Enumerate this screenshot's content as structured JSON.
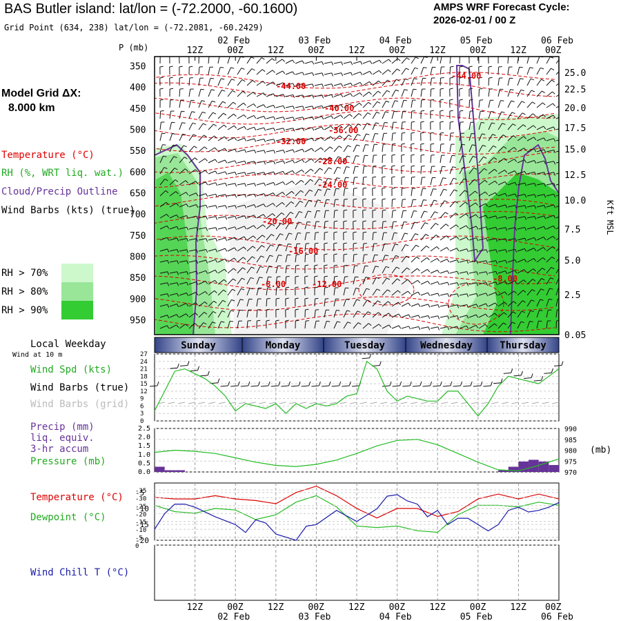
{
  "header": {
    "title": "BAS Butler island:  lat/lon = (-72.2000, -60.1600)",
    "grid_point": "Grid Point (634, 238) lat/lon = (-72.2081, -60.2429)",
    "cycle_label": "AMPS WRF Forecast Cycle:",
    "cycle_value": "2026-02-01 / 00  Z"
  },
  "side_labels": {
    "model_grid": "Model Grid ΔX:",
    "model_grid_value": "8.000 km",
    "temperature": "Temperature (°C)",
    "rh": "RH (%, WRT liq. wat.)",
    "cloud": "Cloud/Precip Outline",
    "wind": "Wind Barbs (kts) (true)",
    "p_axis": "P (mb)",
    "kft": "Kft MSL",
    "local_weekday": "Local Weekday",
    "wind_10m": "Wind at 10 m",
    "wind_spd": "Wind Spd (kts)",
    "wind_true": "Wind Barbs (true)",
    "wind_grid": "Wind Barbs (grid)",
    "precip1": "Precip (mm)",
    "precip2": "liq. equiv.",
    "precip3": "3-hr accum",
    "pressure": "Pressure (mb)",
    "pressure_unit": "(mb)",
    "temp2": "Temperature (°C)",
    "dewpoint": "Dewpoint (°C)",
    "windchill": "Wind Chill T (°C)"
  },
  "rh_legend": [
    {
      "label": "RH > 70%",
      "color": "#ccf8cc"
    },
    {
      "label": "RH > 80%",
      "color": "#99e699"
    },
    {
      "label": "RH > 90%",
      "color": "#33cc33"
    }
  ],
  "colors": {
    "temp": "#dd0000",
    "green": "#22bb22",
    "purple": "#663399",
    "blue": "#1a1aaa"
  },
  "time_axis": {
    "top_dates": [
      "02 Feb",
      "03 Feb",
      "04 Feb",
      "05 Feb",
      "06 Feb"
    ],
    "hour_labels": [
      "12Z",
      "00Z",
      "12Z",
      "00Z",
      "12Z",
      "00Z",
      "12Z",
      "00Z",
      "12Z",
      "00Z"
    ],
    "weekdays": [
      "Sunday",
      "Monday",
      "Tuesday",
      "Wednesday",
      "Thursday"
    ]
  },
  "chart_data": [
    {
      "type": "heatmap",
      "description_of_axes": "time-height cross section",
      "ylabel": "P (mb)",
      "y_ticks": [
        350,
        400,
        450,
        500,
        550,
        600,
        650,
        700,
        750,
        800,
        850,
        900,
        950
      ],
      "y2_label": "Kft MSL",
      "y2_ticks": [
        "25.0",
        "22.5",
        "20.0",
        "17.5",
        "15.0",
        "12.5",
        "10.0",
        "7.5",
        "5.0",
        "2.5",
        "0.05"
      ],
      "temperature_contour_labels": [
        "-44.00",
        "-40.00",
        "-36.00",
        "-32.00",
        "-28.00",
        "-24.00",
        "-20.00",
        "-16.00",
        "-12.00",
        "-8.00",
        "-8.00",
        "-44.00"
      ]
    },
    {
      "type": "line",
      "name": "wind_speed",
      "ylabel": "Wind Spd (kts)",
      "y_ticks": [
        0,
        3,
        6,
        9,
        12,
        15,
        18,
        21,
        24,
        27
      ],
      "ylim": [
        0,
        27
      ],
      "x_hours": [
        0,
        6,
        9,
        12,
        15,
        18,
        21,
        24,
        27,
        30,
        33,
        36,
        39,
        42,
        45,
        48,
        51,
        54,
        57,
        60,
        63,
        66,
        69,
        72,
        75,
        78,
        81,
        84,
        87,
        90,
        93,
        96,
        99,
        102,
        105,
        108,
        111,
        114,
        117,
        120
      ],
      "values": [
        4,
        20,
        21,
        19,
        17,
        14,
        10,
        4,
        7,
        6,
        5,
        7,
        3,
        7,
        5,
        7,
        6,
        7,
        10,
        11,
        24,
        21,
        12,
        8,
        10,
        9,
        8,
        8,
        12,
        12,
        7,
        2,
        7,
        14,
        18,
        17,
        16,
        15,
        18,
        21
      ]
    },
    {
      "type": "line",
      "name": "pressure",
      "ylabel": "Pressure (mb)",
      "y_ticks_left": [
        "0.0",
        "0.5",
        "1.0",
        "1.5",
        "2.0",
        "2.5"
      ],
      "y_ticks_right": [
        970,
        975,
        980,
        985,
        990
      ],
      "ylim": [
        970,
        990
      ],
      "x_hours": [
        0,
        6,
        12,
        18,
        24,
        30,
        36,
        42,
        48,
        54,
        60,
        66,
        72,
        78,
        84,
        90,
        96,
        102,
        108,
        114,
        120
      ],
      "values": [
        979,
        980,
        979.5,
        978.5,
        976.5,
        974.5,
        973,
        972.5,
        973.5,
        975.5,
        978.5,
        982,
        984.5,
        985,
        982.5,
        978.5,
        974.5,
        971,
        970.5,
        973,
        976
      ]
    },
    {
      "type": "bar",
      "name": "precip_3hr",
      "ylabel": "Precip (mm)",
      "x_hours": [
        0,
        3,
        6,
        102,
        105,
        108,
        111,
        114,
        117
      ],
      "values": [
        0.3,
        0.1,
        0.1,
        0.1,
        0.3,
        0.6,
        0.7,
        0.6,
        0.4
      ]
    },
    {
      "type": "line",
      "name": "temperature_dewpoint",
      "y_ticks": [
        -20,
        -15,
        -10,
        -5
      ],
      "ylim": [
        -20,
        -2
      ],
      "x_hours": [
        0,
        6,
        12,
        18,
        24,
        30,
        36,
        42,
        48,
        54,
        60,
        66,
        72,
        78,
        84,
        90,
        96,
        102,
        108,
        114,
        120
      ],
      "series": [
        {
          "name": "Temperature (°C)",
          "values": [
            -6.5,
            -7,
            -7,
            -6,
            -7,
            -7.5,
            -8.5,
            -5,
            -3,
            -6,
            -10,
            -13,
            -10,
            -10,
            -12.5,
            -11,
            -7,
            -5.5,
            -7,
            -5.5,
            -7
          ]
        },
        {
          "name": "Dewpoint (°C)",
          "values": [
            -9,
            -11,
            -11.5,
            -10,
            -10.5,
            -13.5,
            -12,
            -8,
            -6,
            -9.5,
            -15.5,
            -16,
            -15.5,
            -17,
            -17.5,
            -12,
            -9,
            -9,
            -9.5,
            -8,
            -9
          ]
        }
      ]
    },
    {
      "type": "line",
      "name": "wind_chill",
      "ylabel": "Wind Chill T (°C)",
      "y_ticks": [
        0,
        -5,
        -10,
        -15,
        -20,
        -25,
        -30,
        -35
      ],
      "ylim": [
        -35,
        0
      ],
      "x_hours": [
        0,
        3,
        6,
        9,
        12,
        18,
        24,
        27,
        30,
        33,
        36,
        42,
        45,
        48,
        54,
        60,
        66,
        69,
        72,
        75,
        78,
        81,
        84,
        87,
        90,
        93,
        96,
        99,
        102,
        105,
        108,
        111,
        114,
        117,
        120
      ],
      "values": [
        -10,
        -20,
        -26,
        -26,
        -24,
        -18,
        -13,
        -8,
        -16,
        -14,
        -7,
        -3,
        -12,
        -13,
        -22,
        -15,
        -23,
        -31,
        -32,
        -28,
        -26,
        -18,
        -22,
        -13,
        -17,
        -17,
        -13,
        -9,
        -13,
        -22,
        -24,
        -21,
        -22,
        -24,
        -27
      ]
    }
  ]
}
